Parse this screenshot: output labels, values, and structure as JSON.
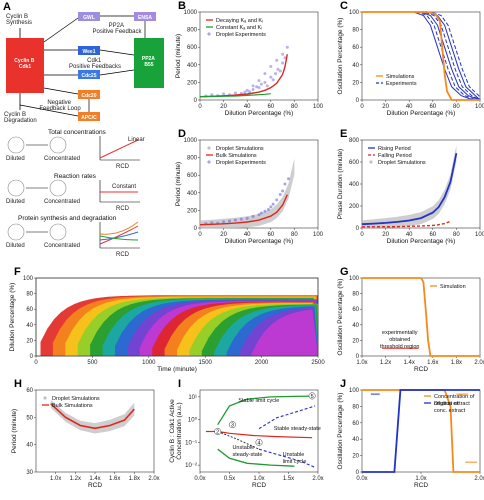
{
  "panels": {
    "A": {
      "label": "A",
      "cyclin_synthesis": "Cyclin B\nSynthesis",
      "cyclin_degradation": "Cyclin B\nDegradation",
      "cdk1_box": "Cyclin B\nCdk1",
      "gwl": "GWL",
      "ensa": "ENSA",
      "pp2a_pos": "PP2A\nPositive Feedback",
      "wee1": "Wee1",
      "cdk1_mid": "Cdk1\nPositive Feedbacks",
      "cdc25": "Cdc25",
      "pp2a_b55": "PP2A\nB55",
      "cdc20": "Cdc20",
      "neg_feedback": "Negative\nFeedback Loop",
      "apcc": "APC/C",
      "total_title": "Total concentrations",
      "total_curve": "Linear",
      "reaction_title": "Reaction rates",
      "reaction_curve": "Constant",
      "protein_title": "Protein synthesis and degradation",
      "diluted": "Diluted",
      "concentrated": "Concentrated",
      "ylabel_param": "Parameter\nvalue",
      "xlabel_rcd": "RCD"
    },
    "B": {
      "label": "B",
      "xlabel": "Dilution Percentage (%)",
      "ylabel": "Period (minute)",
      "legend": [
        "Decaying Kₐ and Kᵢ",
        "Constant Kₐ and Kᵢ",
        "Droplet Experiments"
      ]
    },
    "C": {
      "label": "C",
      "xlabel": "Dilution Percentage (%)",
      "ylabel": "Oscillation Percentage (%)",
      "legend": [
        "Simulations",
        "Experiments"
      ]
    },
    "D": {
      "label": "D",
      "xlabel": "Dilution Percentage (%)",
      "ylabel": "Period (minute)",
      "legend": [
        "Droplet Simulations",
        "Bulk Simulations",
        "Droplet Experiments"
      ]
    },
    "E": {
      "label": "E",
      "xlabel": "Dilution Percentage (%)",
      "ylabel": "Phase Duration (minute)",
      "legend": [
        "Rising Period",
        "Falling Period",
        "Droplet Simulations"
      ]
    },
    "F": {
      "label": "F",
      "xlabel": "Time (minute)",
      "ylabel": "Dilution Percentage (%)"
    },
    "G": {
      "label": "G",
      "xlabel": "RCD",
      "ylabel": "Oscillation Percentage (%)",
      "legend": [
        "Simulation"
      ],
      "annotation": "experimentally\nobtained\nthreshold region"
    },
    "H": {
      "label": "H",
      "xlabel": "RCD",
      "ylabel": "Period (minute)",
      "legend": [
        "Droplet Simulations",
        "Bulk Simulations"
      ]
    },
    "I": {
      "label": "I",
      "xlabel": "RCD",
      "ylabel": "Cyclin B : Cdk1 Active\nConcentration (a.u.)",
      "stable_limit": "Stable limit cycle",
      "stable_steady": "Stable steady-state",
      "unstable_steady": "Unstable\nsteady-state",
      "unstable_limit": "Unstable\nlimit cycle"
    },
    "J": {
      "label": "J",
      "xlabel": "RCD",
      "ylabel": "Oscillation Percentage (%)",
      "legend": [
        "Concentration of\noriginal extract",
        "Dilution of\nconc. extract"
      ]
    }
  },
  "colors": {
    "cdk1": "#e8322b",
    "gwl": "#9b8fe0",
    "ensa": "#a58be0",
    "wee1": "#2f63d6",
    "cdc25": "#3b7ae6",
    "pp2a": "#18a33a",
    "cdc20": "#f07f2a",
    "apcc": "#f07f2a",
    "red": "#e0251f",
    "blue": "#2233c8",
    "orange": "#f58a1c",
    "green": "#1f9a30",
    "gray": "#9a9a9a"
  },
  "chart_data": [
    {
      "panel": "B",
      "type": "scatter",
      "xlim": [
        0,
        100
      ],
      "ylim": [
        0,
        1000
      ],
      "x_ticks": [
        0,
        20,
        40,
        60,
        80,
        100
      ],
      "y_ticks": [
        0,
        200,
        400,
        600,
        800,
        1000
      ],
      "series": [
        {
          "name": "Decaying Kₐ and Kᵢ",
          "type": "line",
          "x": [
            0,
            10,
            20,
            30,
            40,
            50,
            55,
            60,
            65,
            70,
            72,
            74
          ],
          "y": [
            38,
            42,
            48,
            56,
            68,
            90,
            110,
            140,
            190,
            290,
            380,
            520
          ]
        },
        {
          "name": "Constant Kₐ and Kᵢ",
          "type": "line",
          "x": [
            0,
            10,
            20,
            30,
            40,
            50,
            55,
            60
          ],
          "y": [
            38,
            40,
            42,
            46,
            52,
            60,
            65,
            72
          ]
        },
        {
          "name": "Droplet Experiments",
          "type": "scatter",
          "x": [
            5,
            10,
            15,
            20,
            25,
            30,
            35,
            38,
            40,
            42,
            45,
            48,
            50,
            52,
            55,
            57,
            60,
            62,
            64,
            66,
            68,
            70,
            72,
            74,
            55,
            60,
            65,
            70,
            45,
            50
          ],
          "y": [
            45,
            60,
            50,
            70,
            60,
            80,
            75,
            90,
            110,
            95,
            120,
            150,
            140,
            180,
            200,
            160,
            260,
            230,
            300,
            350,
            330,
            420,
            480,
            600,
            300,
            380,
            450,
            520,
            160,
            220
          ]
        }
      ]
    },
    {
      "panel": "C",
      "type": "line",
      "xlim": [
        0,
        100
      ],
      "ylim": [
        0,
        100
      ],
      "x_ticks": [
        0,
        20,
        40,
        60,
        80,
        100
      ],
      "y_ticks": [
        0,
        20,
        40,
        60,
        80,
        100
      ],
      "series": [
        {
          "name": "Simulations",
          "x": [
            0,
            55,
            62,
            66,
            68,
            70,
            72,
            76,
            100
          ],
          "y": [
            100,
            100,
            98,
            90,
            60,
            30,
            10,
            0,
            0
          ]
        },
        {
          "name": "Experiments",
          "x": [
            0,
            50,
            58,
            64,
            70,
            76,
            82,
            90,
            100
          ],
          "y": [
            100,
            100,
            96,
            85,
            60,
            35,
            15,
            5,
            0
          ]
        }
      ]
    },
    {
      "panel": "D",
      "type": "scatter",
      "xlim": [
        0,
        100
      ],
      "ylim": [
        0,
        1000
      ],
      "x_ticks": [
        0,
        20,
        40,
        60,
        80,
        100
      ],
      "y_ticks": [
        0,
        200,
        400,
        600,
        800,
        1000
      ],
      "series": [
        {
          "name": "Droplet Simulations",
          "type": "band",
          "x": [
            0,
            10,
            20,
            30,
            40,
            50,
            60,
            65,
            70,
            75,
            80
          ],
          "y": [
            40,
            44,
            50,
            58,
            70,
            92,
            140,
            190,
            270,
            420,
            700
          ]
        },
        {
          "name": "Bulk Simulations",
          "type": "line",
          "x": [
            0,
            10,
            20,
            30,
            40,
            50,
            60,
            65,
            70,
            74
          ],
          "y": [
            38,
            42,
            48,
            56,
            68,
            90,
            135,
            180,
            260,
            380
          ]
        },
        {
          "name": "Droplet Experiments",
          "type": "scatter",
          "x": [
            5,
            10,
            15,
            20,
            25,
            30,
            35,
            40,
            45,
            50,
            55,
            60,
            62,
            65,
            68,
            70,
            72,
            75,
            58,
            52
          ],
          "y": [
            50,
            60,
            55,
            70,
            80,
            90,
            100,
            110,
            130,
            150,
            190,
            240,
            270,
            320,
            380,
            420,
            500,
            560,
            210,
            170
          ]
        }
      ]
    },
    {
      "panel": "E",
      "type": "line",
      "xlim": [
        0,
        100
      ],
      "ylim": [
        0,
        800
      ],
      "x_ticks": [
        0,
        20,
        40,
        60,
        80,
        100
      ],
      "y_ticks": [
        0,
        200,
        400,
        600,
        800
      ],
      "series": [
        {
          "name": "Rising Period",
          "x": [
            0,
            10,
            20,
            30,
            40,
            50,
            60,
            65,
            70,
            75,
            80
          ],
          "y": [
            35,
            40,
            46,
            55,
            68,
            90,
            140,
            190,
            280,
            420,
            680
          ]
        },
        {
          "name": "Falling Period",
          "x": [
            0,
            10,
            20,
            30,
            40,
            50,
            60,
            65,
            70,
            75
          ],
          "y": [
            10,
            11,
            12,
            13,
            15,
            18,
            24,
            30,
            40,
            60
          ]
        }
      ]
    },
    {
      "panel": "F",
      "type": "line",
      "xlim": [
        0,
        2500
      ],
      "ylim": [
        0,
        100
      ],
      "x_ticks": [
        0,
        500,
        1000,
        1500,
        2000,
        2500
      ],
      "y_ticks": [
        0,
        20,
        40,
        60,
        80,
        100
      ]
    },
    {
      "panel": "G",
      "type": "line",
      "xlim": [
        1.0,
        2.0
      ],
      "ylim": [
        0,
        100
      ],
      "x_ticks": [
        "1.0x",
        "1.2x",
        "1.4x",
        "1.6x",
        "1.8x",
        "2.0x"
      ],
      "y_ticks": [
        0,
        20,
        40,
        60,
        80,
        100
      ],
      "series": [
        {
          "name": "Simulation",
          "x": [
            1.0,
            1.5,
            1.52,
            1.54,
            1.56,
            1.58,
            2.0
          ],
          "y": [
            100,
            100,
            95,
            60,
            20,
            0,
            0
          ]
        }
      ],
      "threshold_region": [
        1.17,
        1.48
      ]
    },
    {
      "panel": "H",
      "type": "line",
      "xlim": [
        0.8,
        2.0
      ],
      "ylim": [
        30,
        60
      ],
      "x_ticks": [
        "1.0x",
        "1.2x",
        "1.4x",
        "1.6x",
        "1.8x",
        "2.0x"
      ],
      "y_ticks": [
        30,
        40,
        50,
        60
      ],
      "series": [
        {
          "name": "Droplet Simulations",
          "type": "band",
          "x": [
            0.95,
            1.1,
            1.25,
            1.4,
            1.55,
            1.7,
            1.8
          ],
          "y": [
            55,
            50,
            47,
            46,
            47,
            49,
            53
          ]
        },
        {
          "name": "Bulk Simulations",
          "x": [
            0.95,
            1.1,
            1.25,
            1.4,
            1.55,
            1.7,
            1.8
          ],
          "y": [
            55,
            50,
            47,
            46,
            47,
            49,
            53
          ]
        }
      ]
    },
    {
      "panel": "I",
      "type": "line",
      "xlim": [
        0.0,
        2.0
      ],
      "x_ticks": [
        "0.0x",
        "0.5x",
        "1.0x",
        "1.5x",
        "2.0x"
      ],
      "y_ticks": [
        "10⁻²",
        "10⁻¹",
        "10⁰",
        "10¹"
      ]
    },
    {
      "panel": "J",
      "type": "line",
      "xlim": [
        0.0,
        2.0
      ],
      "ylim": [
        0,
        100
      ],
      "x_ticks": [
        "0.0x",
        "1.0x",
        "2.0x"
      ],
      "y_ticks": [
        0,
        20,
        40,
        60,
        80,
        100
      ],
      "series": [
        {
          "name": "Concentration of\noriginal extract",
          "x": [
            0.0,
            1.4,
            1.5,
            1.55,
            2.0
          ],
          "y": [
            100,
            100,
            80,
            0,
            0
          ]
        },
        {
          "name": "Dilution of\nconc. extract",
          "x": [
            0.0,
            0.55,
            0.6,
            0.65,
            2.0
          ],
          "y": [
            0,
            0,
            50,
            100,
            100
          ]
        }
      ]
    }
  ]
}
